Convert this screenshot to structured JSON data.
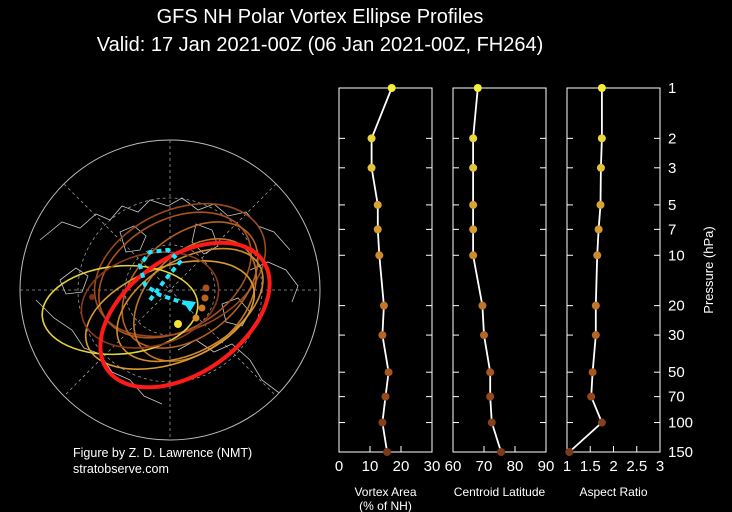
{
  "title_line1": "GFS NH Polar Vortex Ellipse Profiles",
  "title_line2": "Valid: 17 Jan 2021-00Z  (06 Jan 2021-00Z, FH264)",
  "credit_line1": "Figure by Z. D. Lawrence (NMT)",
  "credit_line2": "stratobserve.com",
  "colors": {
    "profile_line": "#ffffff",
    "axis": "#ffffff",
    "background": "#000000",
    "map_lines": "#bdbdbd",
    "highlight_ellipse": "#ff1a1a",
    "centroid_track": "#22e5ff"
  },
  "chart_data": [
    {
      "type": "map",
      "projection": "north-polar-stereographic",
      "description_items": [
        "coastlines",
        "lat-lon grid",
        "vortex ellipses by level",
        "centroid track"
      ]
    },
    {
      "type": "line",
      "xlabel": "Vortex Area",
      "xlabel_line2": "(% of NH)",
      "ylabel": "",
      "xlim": [
        0,
        30
      ],
      "x_ticks": [
        "0",
        "10",
        "20",
        "30"
      ],
      "y_scale": "log",
      "y_inverted": true,
      "ylim": [
        150,
        1
      ],
      "pressure_levels": [
        1,
        2,
        3,
        5,
        7,
        10,
        20,
        30,
        50,
        70,
        100,
        150
      ],
      "values": [
        17,
        10.5,
        10.5,
        12.5,
        12.5,
        13,
        14.5,
        14,
        16,
        15,
        14,
        15.5
      ]
    },
    {
      "type": "line",
      "xlabel": "Centroid Latitude",
      "ylabel": "",
      "xlim": [
        60,
        90
      ],
      "x_ticks": [
        "60",
        "70",
        "80",
        "90"
      ],
      "y_scale": "log",
      "y_inverted": true,
      "ylim": [
        150,
        1
      ],
      "pressure_levels": [
        1,
        2,
        3,
        5,
        7,
        10,
        20,
        30,
        50,
        70,
        100,
        150
      ],
      "values": [
        68,
        66.5,
        66.5,
        66.5,
        66.5,
        66.5,
        69.5,
        70,
        72,
        72,
        72.5,
        75.5
      ]
    },
    {
      "type": "line",
      "xlabel": "Aspect Ratio",
      "ylabel": "Pressure (hPa)",
      "xlim": [
        1,
        3
      ],
      "x_ticks": [
        "1",
        "1.5",
        "2",
        "2.5",
        "3"
      ],
      "y_scale": "log",
      "y_inverted": true,
      "ylim": [
        150,
        1
      ],
      "pressure_levels": [
        1,
        2,
        3,
        5,
        7,
        10,
        20,
        30,
        50,
        70,
        100,
        150
      ],
      "y_tick_labels": [
        "1",
        "2",
        "3",
        "5",
        "7",
        "10",
        "20",
        "30",
        "50",
        "70",
        "100",
        "150"
      ],
      "values": [
        1.75,
        1.75,
        1.73,
        1.72,
        1.68,
        1.65,
        1.62,
        1.62,
        1.55,
        1.52,
        1.75,
        1.05
      ]
    }
  ]
}
